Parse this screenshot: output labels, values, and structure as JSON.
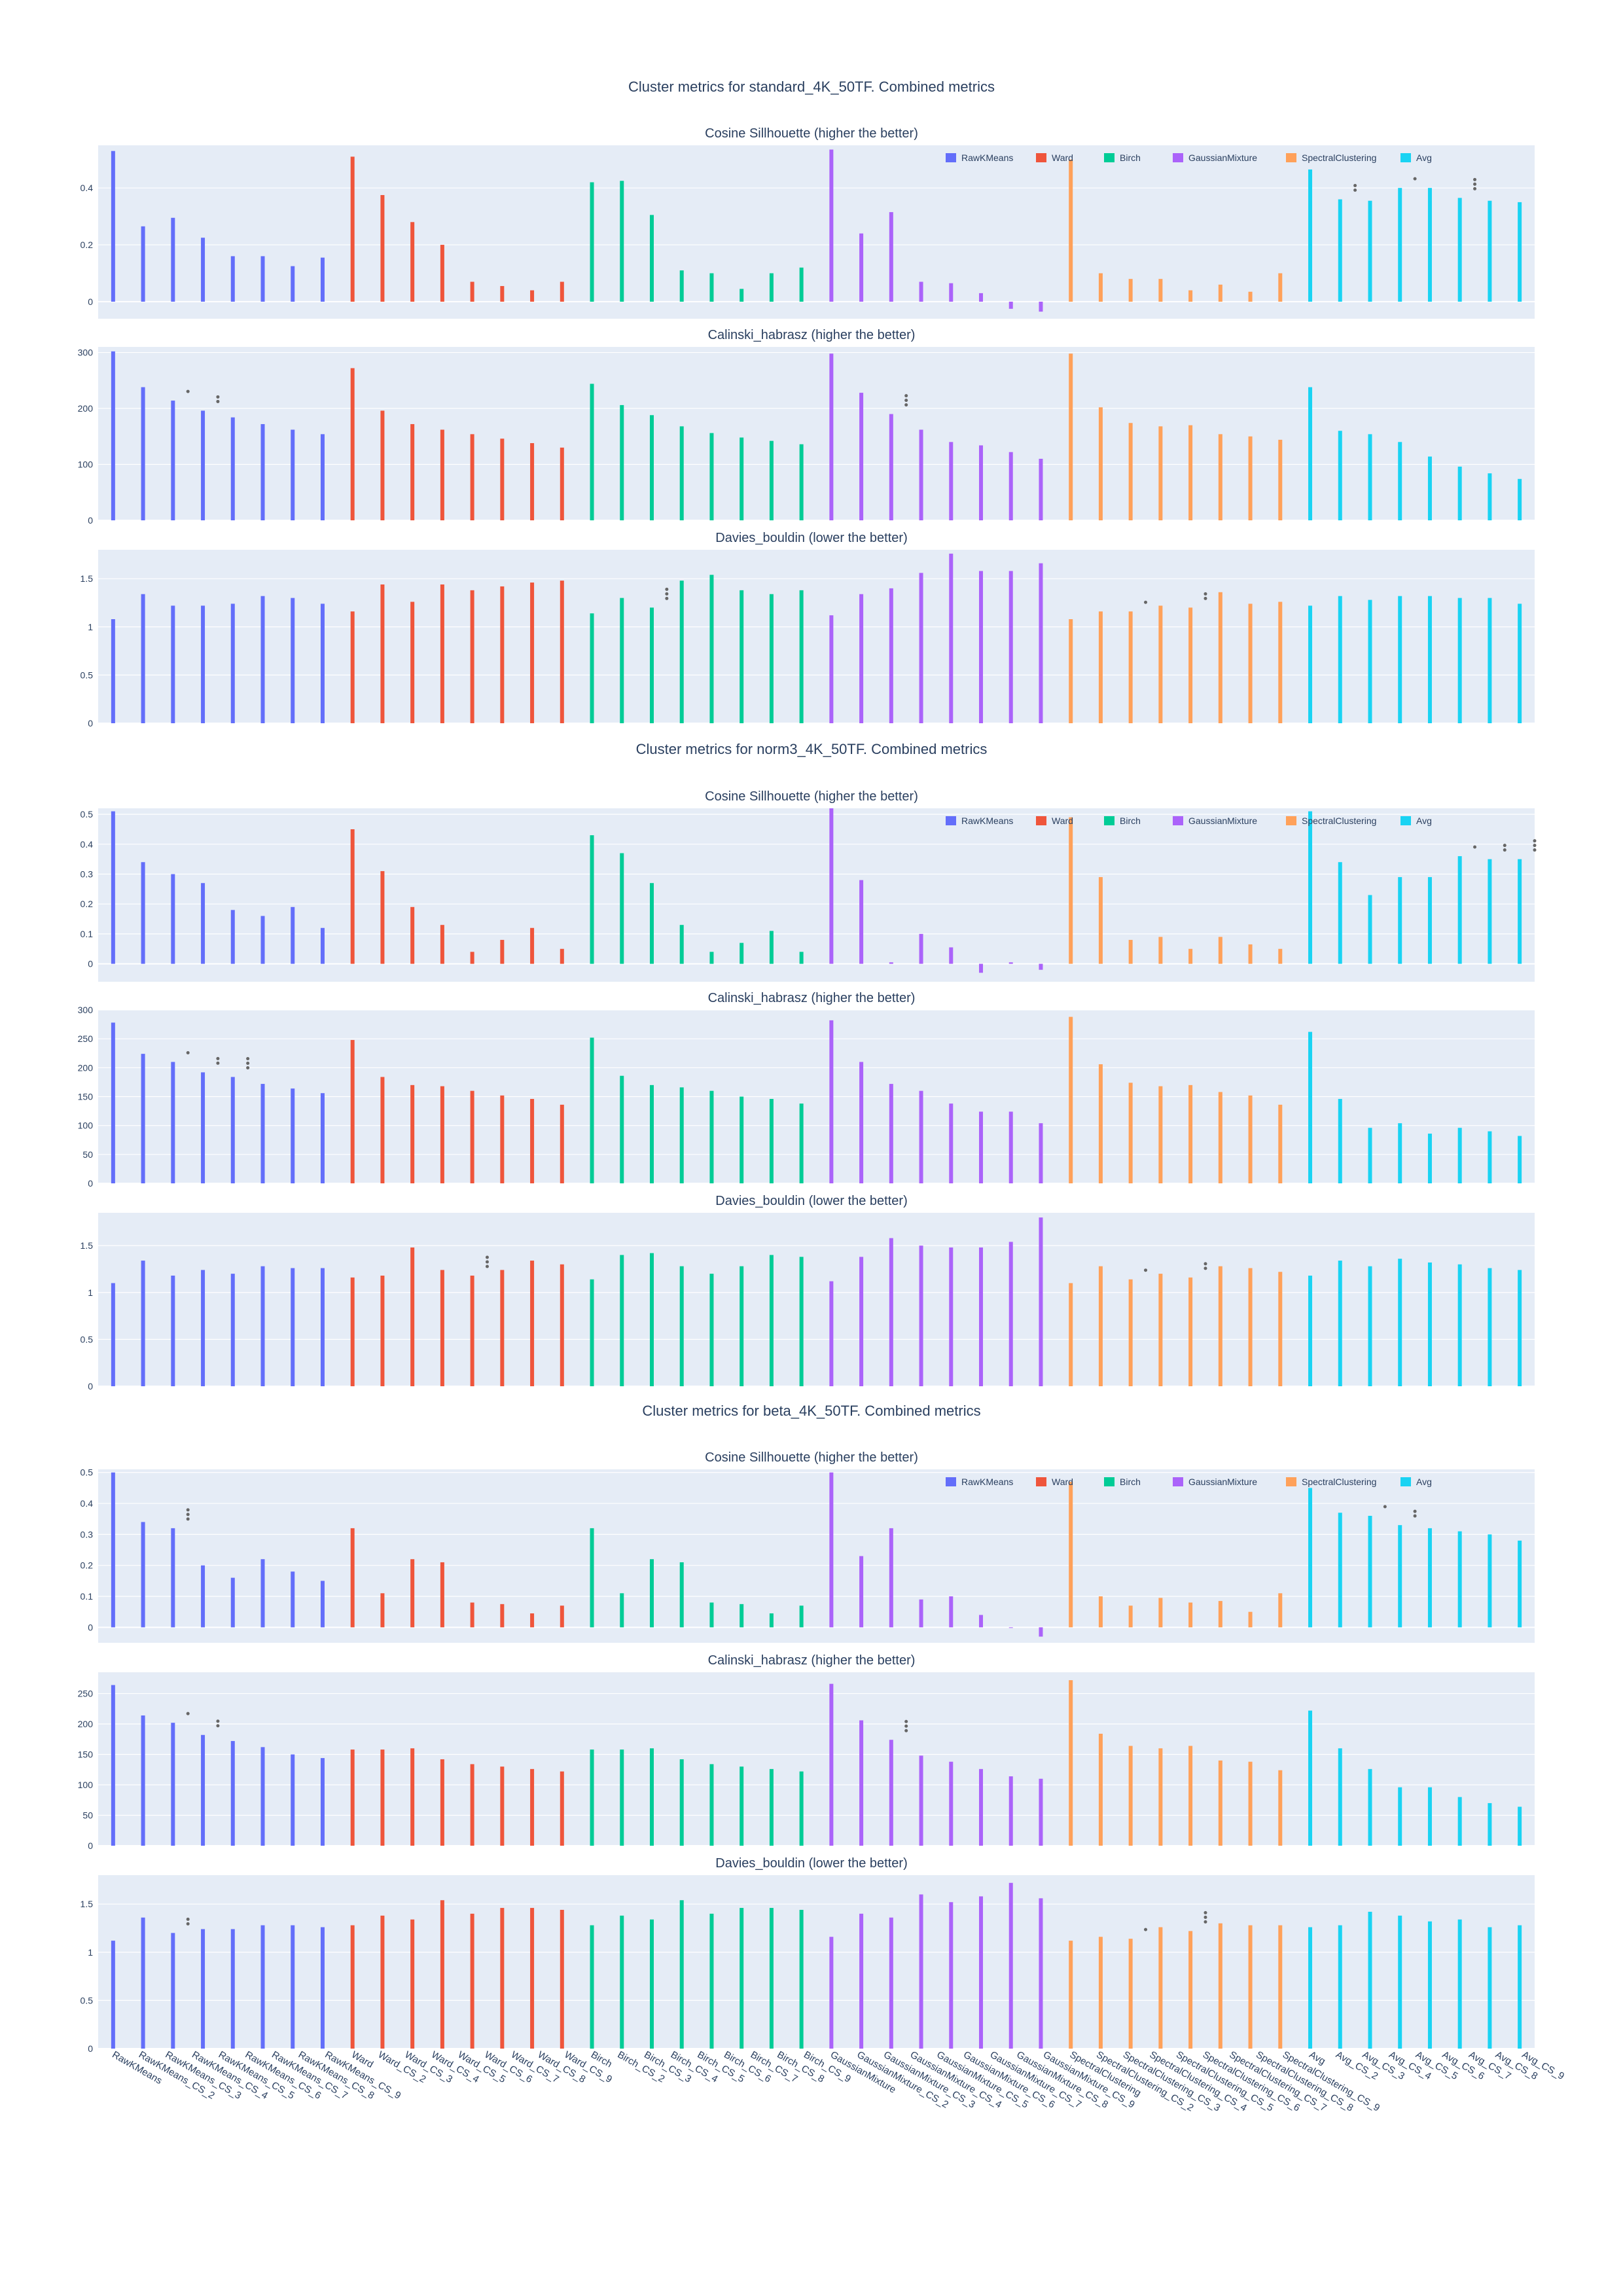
{
  "chart_data": {
    "type": "bar",
    "categories": [
      "RawKMeans",
      "RawKMeans_CS_2",
      "RawKMeans_CS_3",
      "RawKMeans_CS_4",
      "RawKMeans_CS_5",
      "RawKMeans_CS_6",
      "RawKMeans_CS_7",
      "RawKMeans_CS_8",
      "RawKMeans_CS_9",
      "Ward",
      "Ward_CS_2",
      "Ward_CS_3",
      "Ward_CS_4",
      "Ward_CS_5",
      "Ward_CS_6",
      "Ward_CS_7",
      "Ward_CS_8",
      "Ward_CS_9",
      "Birch",
      "Birch_CS_2",
      "Birch_CS_3",
      "Birch_CS_4",
      "Birch_CS_5",
      "Birch_CS_6",
      "Birch_CS_7",
      "Birch_CS_8",
      "Birch_CS_9",
      "GaussianMixture",
      "GaussianMixture_CS_2",
      "GaussianMixture_CS_3",
      "GaussianMixture_CS_4",
      "GaussianMixture_CS_5",
      "GaussianMixture_CS_6",
      "GaussianMixture_CS_7",
      "GaussianMixture_CS_8",
      "GaussianMixture_CS_9",
      "SpectralClustering",
      "SpectralClustering_CS_2",
      "SpectralClustering_CS_3",
      "SpectralClustering_CS_4",
      "SpectralClustering_CS_5",
      "SpectralClustering_CS_6",
      "SpectralClustering_CS_7",
      "SpectralClustering_CS_8",
      "SpectralClustering_CS_9",
      "Avg",
      "Avg_CS_2",
      "Avg_CS_3",
      "Avg_CS_4",
      "Avg_CS_5",
      "Avg_CS_6",
      "Avg_CS_7",
      "Avg_CS_8",
      "Avg_CS_9"
    ],
    "series_names": [
      "RawKMeans",
      "Ward",
      "Birch",
      "GaussianMixture",
      "SpectralClustering",
      "Avg"
    ],
    "series_colors": [
      "#636efa",
      "#EF553B",
      "#00cc96",
      "#ab63fa",
      "#FFA15A",
      "#19d3f3"
    ],
    "legend_position": "top-right",
    "grid": true,
    "groups": [
      {
        "title": "Cluster metrics for standard_4K_50TF. Combined metrics",
        "panels": [
          {
            "title": "Cosine Sillhouette (higher the better)",
            "ylim": [
              -0.06,
              0.55
            ],
            "yticks": [
              0,
              0.2,
              0.4
            ],
            "show_legend": true,
            "values": [
              0.53,
              0.265,
              0.295,
              0.225,
              0.16,
              0.16,
              0.125,
              0.155,
              0.51,
              0.375,
              0.28,
              0.2,
              0.07,
              0.055,
              0.04,
              0.07,
              0.42,
              0.425,
              0.305,
              0.11,
              0.1,
              0.045,
              0.1,
              0.12,
              0.535,
              0.24,
              0.315,
              0.07,
              0.065,
              0.03,
              -0.025,
              -0.035,
              0.5,
              0.1,
              0.08,
              0.08,
              0.04,
              0.06,
              0.035,
              0.1,
              0.465,
              0.36,
              0.355,
              0.4,
              0.4,
              0.365,
              0.355,
              0.35
            ],
            "annotations": [
              {
                "index": 41,
                "text": "**"
              },
              {
                "index": 43,
                "text": "*"
              },
              {
                "index": 45,
                "text": "***"
              }
            ]
          },
          {
            "title": "Calinski_habrasz (higher the better)",
            "ylim": [
              0,
              310
            ],
            "yticks": [
              0,
              100,
              200,
              300
            ],
            "show_legend": false,
            "values": [
              302,
              238,
              214,
              196,
              184,
              172,
              162,
              154,
              272,
              196,
              172,
              162,
              154,
              146,
              138,
              130,
              244,
              206,
              188,
              168,
              156,
              148,
              142,
              136,
              298,
              228,
              190,
              162,
              140,
              134,
              122,
              110,
              298,
              202,
              174,
              168,
              170,
              154,
              150,
              144,
              238,
              160,
              154,
              140,
              114,
              96,
              84,
              74
            ],
            "annotations": [
              {
                "index": 2,
                "text": "*"
              },
              {
                "index": 3,
                "text": "**"
              },
              {
                "index": 26,
                "text": "***"
              }
            ]
          },
          {
            "title": "Davies_bouldin (lower the better)",
            "ylim": [
              0,
              1.8
            ],
            "yticks": [
              0,
              0.5,
              1,
              1.5
            ],
            "show_legend": false,
            "values": [
              1.08,
              1.34,
              1.22,
              1.22,
              1.24,
              1.32,
              1.3,
              1.24,
              1.16,
              1.44,
              1.26,
              1.44,
              1.38,
              1.42,
              1.46,
              1.48,
              1.14,
              1.3,
              1.2,
              1.48,
              1.54,
              1.38,
              1.34,
              1.38,
              1.12,
              1.34,
              1.4,
              1.56,
              1.76,
              1.58,
              1.58,
              1.66,
              1.08,
              1.16,
              1.16,
              1.22,
              1.2,
              1.36,
              1.24,
              1.26,
              1.22,
              1.32,
              1.28,
              1.32,
              1.32,
              1.3,
              1.3,
              1.24
            ],
            "annotations": [
              {
                "index": 18,
                "text": "***"
              },
              {
                "index": 34,
                "text": "*"
              },
              {
                "index": 36,
                "text": "**"
              }
            ]
          }
        ]
      },
      {
        "title": "Cluster metrics for norm3_4K_50TF. Combined metrics",
        "panels": [
          {
            "title": "Cosine Sillhouette (higher the better)",
            "ylim": [
              -0.06,
              0.52
            ],
            "yticks": [
              0,
              0.1,
              0.2,
              0.3,
              0.4,
              0.5
            ],
            "show_legend": true,
            "values": [
              0.51,
              0.34,
              0.3,
              0.27,
              0.18,
              0.16,
              0.19,
              0.12,
              0.45,
              0.31,
              0.19,
              0.13,
              0.04,
              0.08,
              0.12,
              0.05,
              0.43,
              0.37,
              0.27,
              0.13,
              0.04,
              0.07,
              0.11,
              0.04,
              0.52,
              0.28,
              0.005,
              0.1,
              0.055,
              -0.03,
              0.005,
              -0.02,
              0.49,
              0.29,
              0.08,
              0.09,
              0.05,
              0.09,
              0.065,
              0.05,
              0.51,
              0.34,
              0.23,
              0.29,
              0.29,
              0.36,
              0.35,
              0.35
            ],
            "annotations": [
              {
                "index": 45,
                "text": "*"
              },
              {
                "index": 46,
                "text": "**"
              },
              {
                "index": 47,
                "text": "***"
              }
            ]
          },
          {
            "title": "Calinski_habrasz (higher the better)",
            "ylim": [
              0,
              300
            ],
            "yticks": [
              0,
              50,
              100,
              150,
              200,
              250,
              300
            ],
            "show_legend": false,
            "values": [
              278,
              224,
              210,
              192,
              184,
              172,
              164,
              156,
              248,
              184,
              170,
              168,
              160,
              152,
              146,
              136,
              252,
              186,
              170,
              166,
              160,
              150,
              146,
              138,
              282,
              210,
              172,
              160,
              138,
              124,
              124,
              104,
              288,
              206,
              174,
              168,
              170,
              158,
              152,
              136,
              262,
              146,
              96,
              104,
              86,
              96,
              90,
              82
            ],
            "annotations": [
              {
                "index": 2,
                "text": "*"
              },
              {
                "index": 3,
                "text": "**"
              },
              {
                "index": 4,
                "text": "***"
              }
            ]
          },
          {
            "title": "Davies_bouldin (lower the better)",
            "ylim": [
              0,
              1.85
            ],
            "yticks": [
              0,
              0.5,
              1,
              1.5
            ],
            "show_legend": false,
            "values": [
              1.1,
              1.34,
              1.18,
              1.24,
              1.2,
              1.28,
              1.26,
              1.26,
              1.16,
              1.18,
              1.48,
              1.24,
              1.18,
              1.24,
              1.34,
              1.3,
              1.14,
              1.4,
              1.42,
              1.28,
              1.2,
              1.28,
              1.4,
              1.38,
              1.12,
              1.38,
              1.58,
              1.5,
              1.48,
              1.48,
              1.54,
              1.8,
              1.1,
              1.28,
              1.14,
              1.2,
              1.16,
              1.28,
              1.26,
              1.22,
              1.18,
              1.34,
              1.28,
              1.36,
              1.32,
              1.3,
              1.26,
              1.24
            ],
            "annotations": [
              {
                "index": 12,
                "text": "***"
              },
              {
                "index": 34,
                "text": "*"
              },
              {
                "index": 36,
                "text": "**"
              }
            ]
          }
        ]
      },
      {
        "title": "Cluster metrics for beta_4K_50TF. Combined metrics",
        "panels": [
          {
            "title": "Cosine Sillhouette (higher the better)",
            "ylim": [
              -0.05,
              0.51
            ],
            "yticks": [
              0,
              0.1,
              0.2,
              0.3,
              0.4,
              0.5
            ],
            "show_legend": true,
            "values": [
              0.5,
              0.34,
              0.32,
              0.2,
              0.16,
              0.22,
              0.18,
              0.15,
              0.32,
              0.11,
              0.22,
              0.21,
              0.08,
              0.075,
              0.045,
              0.07,
              0.32,
              0.11,
              0.22,
              0.21,
              0.08,
              0.075,
              0.045,
              0.07,
              0.5,
              0.23,
              0.32,
              0.09,
              0.1,
              0.04,
              0,
              -0.03,
              0.47,
              0.1,
              0.07,
              0.095,
              0.08,
              0.085,
              0.05,
              0.11,
              0.45,
              0.37,
              0.36,
              0.33,
              0.32,
              0.31,
              0.3,
              0.28
            ],
            "annotations": [
              {
                "index": 2,
                "text": "***"
              },
              {
                "index": 42,
                "text": "*"
              },
              {
                "index": 43,
                "text": "**"
              }
            ]
          },
          {
            "title": "Calinski_habrasz (higher the better)",
            "ylim": [
              0,
              285
            ],
            "yticks": [
              0,
              50,
              100,
              150,
              200,
              250
            ],
            "show_legend": false,
            "values": [
              264,
              214,
              202,
              182,
              172,
              162,
              150,
              144,
              158,
              158,
              160,
              142,
              134,
              130,
              126,
              122,
              158,
              158,
              160,
              142,
              134,
              130,
              126,
              122,
              266,
              206,
              174,
              148,
              138,
              126,
              114,
              110,
              272,
              184,
              164,
              160,
              164,
              140,
              138,
              124,
              222,
              160,
              126,
              96,
              96,
              80,
              70,
              64
            ],
            "annotations": [
              {
                "index": 2,
                "text": "*"
              },
              {
                "index": 3,
                "text": "**"
              },
              {
                "index": 26,
                "text": "***"
              }
            ]
          },
          {
            "title": "Davies_bouldin (lower the better)",
            "ylim": [
              0,
              1.8
            ],
            "yticks": [
              0,
              0.5,
              1,
              1.5
            ],
            "show_legend": false,
            "values": [
              1.12,
              1.36,
              1.2,
              1.24,
              1.24,
              1.28,
              1.28,
              1.26,
              1.28,
              1.38,
              1.34,
              1.54,
              1.4,
              1.46,
              1.46,
              1.44,
              1.28,
              1.38,
              1.34,
              1.54,
              1.4,
              1.46,
              1.46,
              1.44,
              1.16,
              1.4,
              1.36,
              1.6,
              1.52,
              1.58,
              1.72,
              1.56,
              1.12,
              1.16,
              1.14,
              1.26,
              1.22,
              1.3,
              1.28,
              1.28,
              1.26,
              1.28,
              1.42,
              1.38,
              1.32,
              1.34,
              1.26,
              1.28
            ],
            "annotations": [
              {
                "index": 2,
                "text": "**"
              },
              {
                "index": 34,
                "text": "*"
              },
              {
                "index": 36,
                "text": "***"
              }
            ]
          }
        ]
      }
    ]
  }
}
